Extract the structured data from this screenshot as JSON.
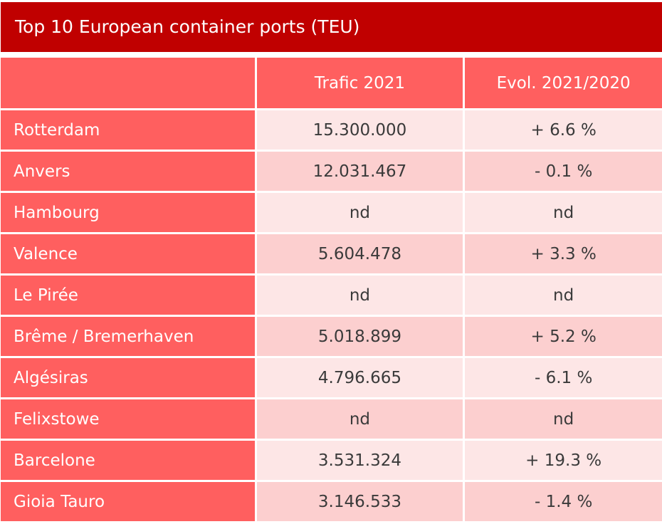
{
  "title": "Top 10 European container ports (TEU)",
  "columns": [
    "",
    "Trafic 2021",
    "Evol. 2021/2020"
  ],
  "rows": [
    [
      "Rotterdam",
      "15.300.000",
      "+ 6.6 %"
    ],
    [
      "Anvers",
      "12.031.467",
      "- 0.1 %"
    ],
    [
      "Hambourg",
      "nd",
      "nd"
    ],
    [
      "Valence",
      "5.604.478",
      "+ 3.3 %"
    ],
    [
      "Le Pirée",
      "nd",
      "nd"
    ],
    [
      "Brême / Bremerhaven",
      "5.018.899",
      "+ 5.2 %"
    ],
    [
      "Algésiras",
      "4.796.665",
      "- 6.1 %"
    ],
    [
      "Felixstowe",
      "nd",
      "nd"
    ],
    [
      "Barcelone",
      "3.531.324",
      "+ 19.3 %"
    ],
    [
      "Gioia Tauro",
      "3.146.533",
      "- 1.4 %"
    ]
  ],
  "colors": {
    "title_bg": "#c00000",
    "header_bg": "#ff5f5f",
    "row_light": "#fde6e6",
    "row_dark": "#fccfcf"
  }
}
